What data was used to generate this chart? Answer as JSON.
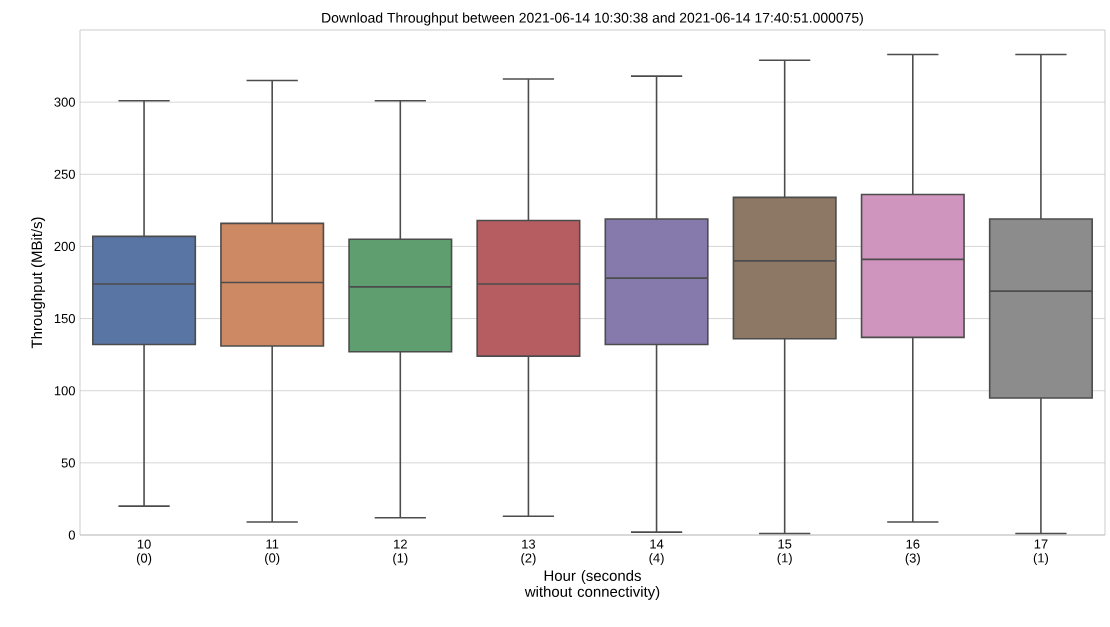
{
  "chart_data": {
    "type": "box",
    "title": "Download Throughput between 2021-06-14 10:30:38 and 2021-06-14 17:40:51.000075)",
    "xlabel": "Hour (seconds without connectivity)",
    "ylabel": "Throughput (MBit/s)",
    "categories": [
      "10 (0)",
      "11 (0)",
      "12 (1)",
      "13 (2)",
      "14 (4)",
      "15 (1)",
      "16 (3)",
      "17 (1)"
    ],
    "colors": [
      "#5975a4",
      "#cc8963",
      "#5f9e6e",
      "#b55d60",
      "#857aab",
      "#8d7866",
      "#d095bf",
      "#8c8c8c"
    ],
    "boxes": [
      {
        "low": 20,
        "q1": 132,
        "median": 174,
        "q3": 207,
        "high": 301
      },
      {
        "low": 9,
        "q1": 131,
        "median": 175,
        "q3": 216,
        "high": 315
      },
      {
        "low": 12,
        "q1": 127,
        "median": 172,
        "q3": 205,
        "high": 301
      },
      {
        "low": 13,
        "q1": 124,
        "median": 174,
        "q3": 218,
        "high": 316
      },
      {
        "low": 2,
        "q1": 132,
        "median": 178,
        "q3": 219,
        "high": 318
      },
      {
        "low": 1,
        "q1": 136,
        "median": 190,
        "q3": 234,
        "high": 329
      },
      {
        "low": 9,
        "q1": 137,
        "median": 191,
        "q3": 236,
        "high": 333
      },
      {
        "low": 1,
        "q1": 95,
        "median": 169,
        "q3": 219,
        "high": 333
      }
    ],
    "ylim": [
      0,
      350
    ],
    "yticks": [
      0,
      50,
      100,
      150,
      200,
      250,
      300
    ],
    "grid": "y"
  }
}
